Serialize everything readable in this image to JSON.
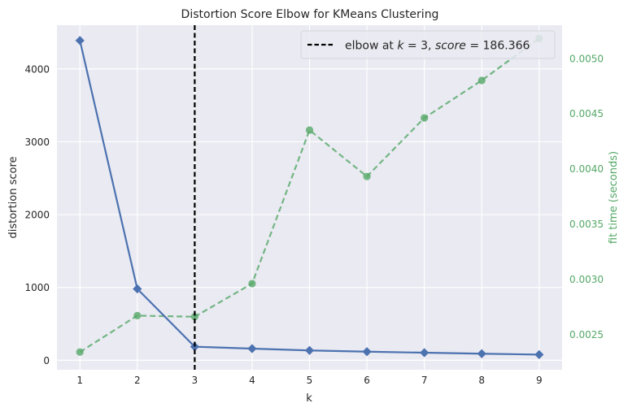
{
  "chart_data": {
    "type": "line",
    "title": "Distortion Score Elbow for KMeans Clustering",
    "xlabel": "k",
    "ylabel": "distortion score",
    "y2label": "fit time (seconds)",
    "x": [
      1,
      2,
      3,
      4,
      5,
      6,
      7,
      8,
      9
    ],
    "xlim": [
      0.6,
      9.4
    ],
    "ylim": [
      -130,
      4600
    ],
    "y2lim": [
      0.00218,
      0.0053
    ],
    "x_ticks": [
      "1",
      "2",
      "3",
      "4",
      "5",
      "6",
      "7",
      "8",
      "9"
    ],
    "y_ticks": [
      {
        "value": 0,
        "label": "0"
      },
      {
        "value": 1000,
        "label": "1000"
      },
      {
        "value": 2000,
        "label": "2000"
      },
      {
        "value": 3000,
        "label": "3000"
      },
      {
        "value": 4000,
        "label": "4000"
      }
    ],
    "y2_ticks": [
      {
        "value": 0.0025,
        "label": "0.0025"
      },
      {
        "value": 0.003,
        "label": "0.0030"
      },
      {
        "value": 0.0035,
        "label": "0.0035"
      },
      {
        "value": 0.004,
        "label": "0.0040"
      },
      {
        "value": 0.0045,
        "label": "0.0045"
      },
      {
        "value": 0.005,
        "label": "0.0050"
      }
    ],
    "series": [
      {
        "role": "distortion",
        "axis": "left",
        "values": [
          4390,
          980,
          186.366,
          160,
          135,
          118,
          104,
          90,
          78
        ],
        "color": "#4c72b0",
        "marker": "diamond",
        "style": "solid"
      },
      {
        "role": "fit_time",
        "axis": "right",
        "values": [
          0.00234,
          0.00267,
          0.00266,
          0.00296,
          0.00435,
          0.00393,
          0.00446,
          0.0048,
          0.00518
        ],
        "color": "#55a868",
        "marker": "circle",
        "style": "dashed"
      }
    ],
    "elbow": {
      "k": 3,
      "score": 186.366,
      "legend_prefix": "elbow at ",
      "legend_k": "k",
      "legend_eq1": " = 3, ",
      "legend_score": "score",
      "legend_eq2": " = 186.366",
      "color": "#000000",
      "style": "dashed"
    },
    "legend_position": "top-right",
    "grid": true,
    "background": "#eaeaf2"
  }
}
